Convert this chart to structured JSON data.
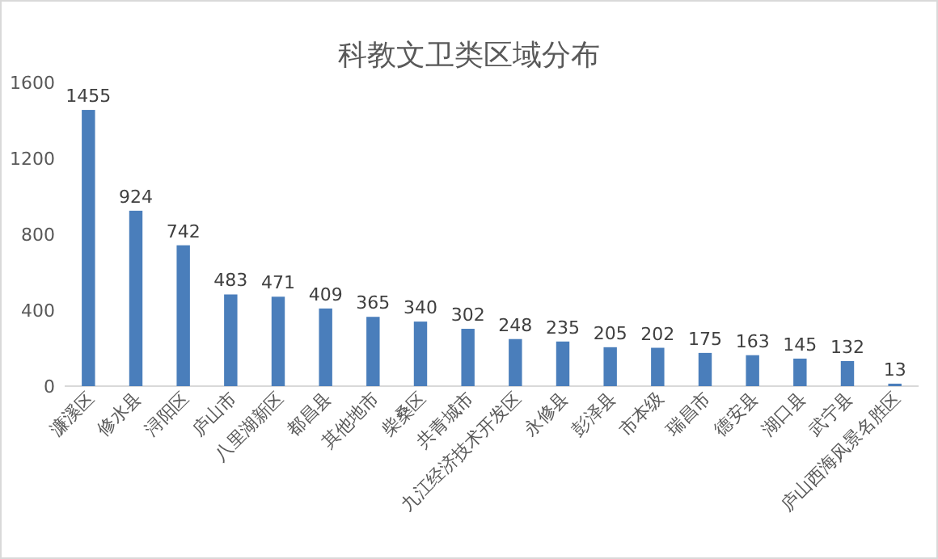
{
  "chart_data": {
    "type": "bar",
    "title": "科教文卫类区域分布",
    "categories": [
      "濂溪区",
      "修水县",
      "浔阳区",
      "庐山市",
      "八里湖新区",
      "都昌县",
      "其他地市",
      "柴桑区",
      "共青城市",
      "九江经济技术开发区",
      "永修县",
      "彭泽县",
      "市本级",
      "瑞昌市",
      "德安县",
      "湖口县",
      "武宁县",
      "庐山西海风景名胜区"
    ],
    "values": [
      1455,
      924,
      742,
      483,
      471,
      409,
      365,
      340,
      302,
      248,
      235,
      205,
      202,
      175,
      163,
      145,
      132,
      13
    ],
    "color": "#4a7ebb",
    "ylim": [
      0,
      1600
    ],
    "yticks": [
      0,
      400,
      800,
      1200,
      1600
    ],
    "data_labels": true,
    "grid": false
  }
}
